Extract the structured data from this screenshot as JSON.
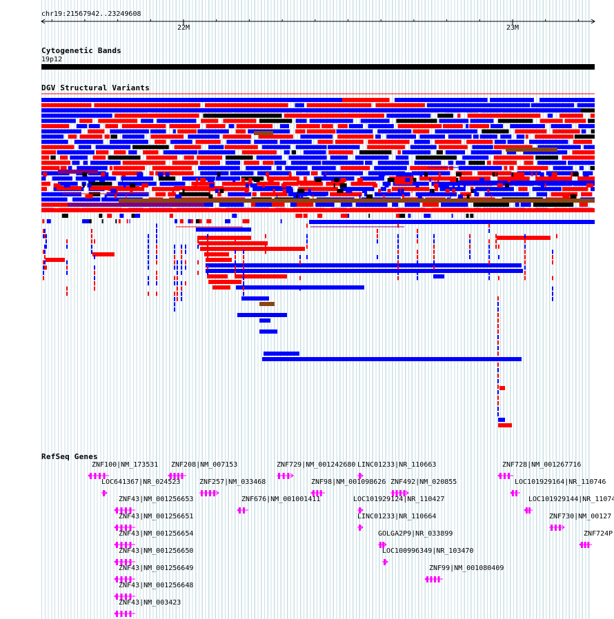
{
  "ruler": {
    "region_label": "chr19:21567942..23249608",
    "ticks": [
      {
        "label": "22M",
        "pos": 22000000
      },
      {
        "label": "23M",
        "pos": 23000000
      }
    ]
  },
  "region": {
    "start": 21567942,
    "end": 23249608
  },
  "cytobands": {
    "title": "Cytogenetic Bands",
    "band_label": "19p12"
  },
  "dgv": {
    "title": "DGV Structural Variants",
    "colors": {
      "loss": "#ff0000",
      "gain": "#0000ff",
      "gain_loss": "#8b4513",
      "complex": "#800080",
      "other": "#000000"
    }
  },
  "refseq": {
    "title": "RefSeq Genes",
    "color": "#ff00ff",
    "genes": [
      {
        "label": "ZNF100|NM_173531",
        "strand": "-"
      },
      {
        "label": "ZNF208|NM_007153",
        "strand": "-"
      },
      {
        "label": "ZNF729|NM_001242680",
        "strand": "+"
      },
      {
        "label": "LINC01233|NR_110663",
        "strand": "+"
      },
      {
        "label": "ZNF728|NM_001267716",
        "strand": "-"
      },
      {
        "label": "LOC641367|NR_024523",
        "strand": "+"
      },
      {
        "label": "ZNF257|NM_033468",
        "strand": "+"
      },
      {
        "label": "ZNF98|NM_001098626",
        "strand": "-"
      },
      {
        "label": "ZNF492|NM_020855",
        "strand": "+"
      },
      {
        "label": "LOC101929164|NR_110746",
        "strand": "-"
      },
      {
        "label": "ZNF43|NM_001256653",
        "strand": "-"
      },
      {
        "label": "ZNF676|NM_001001411",
        "strand": "-"
      },
      {
        "label": "LOC101929124|NR_110427",
        "strand": "+"
      },
      {
        "label": "LOC101929144|NR_11074",
        "strand": "-"
      },
      {
        "label": "ZNF43|NM_001256651",
        "strand": "-"
      },
      {
        "label": "LINC01233|NR_110664",
        "strand": "+"
      },
      {
        "label": "ZNF730|NM_00127",
        "strand": "+"
      },
      {
        "label": "ZNF43|NM_001256654",
        "strand": "-"
      },
      {
        "label": "GOLGA2P9|NR_033899",
        "strand": "+"
      },
      {
        "label": "ZNF724P",
        "strand": "-"
      },
      {
        "label": "ZNF43|NM_001256650",
        "strand": "-"
      },
      {
        "label": "LOC100996349|NR_103470",
        "strand": "+"
      },
      {
        "label": "ZNF43|NM_001256649",
        "strand": "-"
      },
      {
        "label": "ZNF99|NM_001080409",
        "strand": "-"
      },
      {
        "label": "ZNF43|NM_001256648",
        "strand": "-"
      },
      {
        "label": "ZNF43|NM_003423",
        "strand": "-"
      }
    ]
  }
}
